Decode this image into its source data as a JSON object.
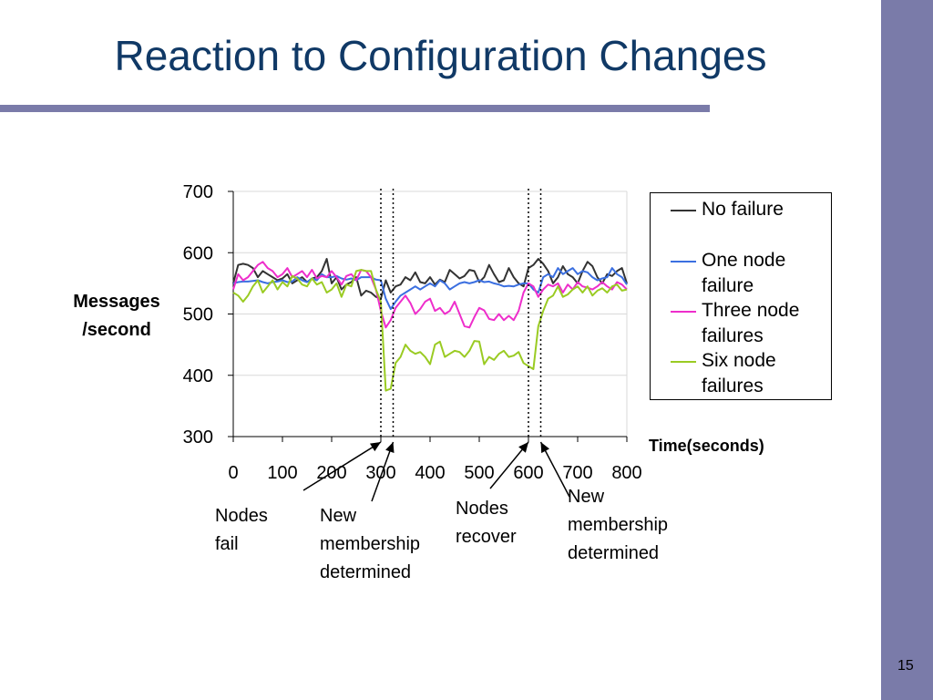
{
  "slide": {
    "title": "Reaction to Configuration Changes",
    "page_number": "15"
  },
  "chart_data": {
    "type": "line",
    "ylabel_line1": "Messages",
    "ylabel_line2": "/second",
    "xlabel": "Time(seconds)",
    "ylim": [
      300,
      700
    ],
    "xlim": [
      0,
      800
    ],
    "y_ticks": [
      300,
      400,
      500,
      600,
      700
    ],
    "x_ticks": [
      0,
      100,
      200,
      300,
      400,
      500,
      600,
      700,
      800
    ],
    "grid": "horizontal",
    "legend_position": "right",
    "event_times": [
      300,
      325,
      600,
      625
    ],
    "annotations": [
      {
        "lines": [
          "Nodes",
          "fail"
        ],
        "target_time": 300
      },
      {
        "lines": [
          "New",
          "membership",
          "determined"
        ],
        "target_time": 325
      },
      {
        "lines": [
          "Nodes",
          "recover"
        ],
        "target_time": 600
      },
      {
        "lines": [
          "New",
          "membership",
          "determined"
        ],
        "target_time": 625
      }
    ],
    "x": [
      0,
      10,
      20,
      30,
      40,
      50,
      60,
      70,
      80,
      90,
      100,
      110,
      120,
      130,
      140,
      150,
      160,
      170,
      180,
      190,
      200,
      210,
      220,
      230,
      240,
      250,
      260,
      270,
      280,
      290,
      300,
      310,
      320,
      330,
      340,
      350,
      360,
      370,
      380,
      390,
      400,
      410,
      420,
      430,
      440,
      450,
      460,
      470,
      480,
      490,
      500,
      510,
      520,
      530,
      540,
      550,
      560,
      570,
      580,
      590,
      600,
      610,
      620,
      630,
      640,
      650,
      660,
      670,
      680,
      690,
      700,
      710,
      720,
      730,
      740,
      750,
      760,
      770,
      780,
      790,
      800
    ],
    "series": [
      {
        "name": "No failure",
        "color": "#333333",
        "values": [
          550,
          580,
          582,
          580,
          575,
          560,
          570,
          565,
          560,
          555,
          558,
          565,
          550,
          555,
          560,
          552,
          558,
          560,
          570,
          590,
          550,
          560,
          540,
          548,
          552,
          560,
          530,
          538,
          535,
          528,
          525,
          555,
          535,
          545,
          548,
          560,
          555,
          568,
          552,
          550,
          560,
          548,
          556,
          552,
          572,
          565,
          558,
          562,
          572,
          570,
          552,
          560,
          580,
          565,
          552,
          555,
          575,
          560,
          550,
          545,
          575,
          580,
          590,
          582,
          570,
          550,
          560,
          578,
          565,
          560,
          550,
          570,
          585,
          578,
          560,
          550,
          565,
          562,
          570,
          575,
          550
        ]
      },
      {
        "name": "One node failure",
        "color": "#3b6fe0",
        "values": [
          550,
          552,
          553,
          553,
          554,
          555,
          552,
          550,
          552,
          553,
          555,
          552,
          553,
          560,
          555,
          552,
          558,
          555,
          565,
          560,
          560,
          562,
          558,
          556,
          558,
          555,
          560,
          560,
          560,
          556,
          555,
          525,
          508,
          520,
          530,
          535,
          540,
          545,
          540,
          545,
          550,
          545,
          555,
          550,
          540,
          545,
          550,
          552,
          550,
          552,
          555,
          552,
          553,
          550,
          548,
          545,
          546,
          545,
          548,
          550,
          550,
          540,
          535,
          560,
          565,
          560,
          575,
          565,
          570,
          575,
          565,
          570,
          568,
          560,
          555,
          558,
          560,
          575,
          565,
          560,
          548
        ]
      },
      {
        "name": "Three node failures",
        "color": "#ee2ecb",
        "values": [
          540,
          565,
          555,
          560,
          570,
          580,
          585,
          575,
          570,
          560,
          565,
          575,
          560,
          565,
          570,
          560,
          572,
          558,
          562,
          560,
          570,
          560,
          548,
          562,
          565,
          555,
          572,
          570,
          560,
          540,
          505,
          478,
          490,
          510,
          520,
          530,
          518,
          500,
          508,
          520,
          525,
          505,
          510,
          500,
          505,
          520,
          500,
          480,
          478,
          495,
          510,
          506,
          492,
          490,
          500,
          490,
          497,
          490,
          505,
          535,
          550,
          545,
          528,
          540,
          548,
          545,
          550,
          535,
          548,
          540,
          552,
          545,
          543,
          540,
          545,
          552,
          545,
          540,
          552,
          548,
          540
        ]
      },
      {
        "name": "Six node failures",
        "color": "#9acb23",
        "values": [
          535,
          530,
          520,
          530,
          545,
          555,
          535,
          545,
          555,
          540,
          552,
          545,
          562,
          558,
          548,
          545,
          558,
          548,
          552,
          535,
          540,
          550,
          528,
          548,
          545,
          570,
          572,
          570,
          570,
          540,
          520,
          375,
          378,
          420,
          430,
          450,
          440,
          435,
          438,
          430,
          418,
          450,
          455,
          430,
          435,
          440,
          438,
          430,
          440,
          456,
          455,
          418,
          430,
          425,
          435,
          440,
          430,
          432,
          438,
          420,
          415,
          410,
          480,
          505,
          525,
          530,
          545,
          528,
          532,
          540,
          545,
          535,
          545,
          530,
          538,
          542,
          535,
          545,
          548,
          538,
          540
        ]
      }
    ]
  }
}
